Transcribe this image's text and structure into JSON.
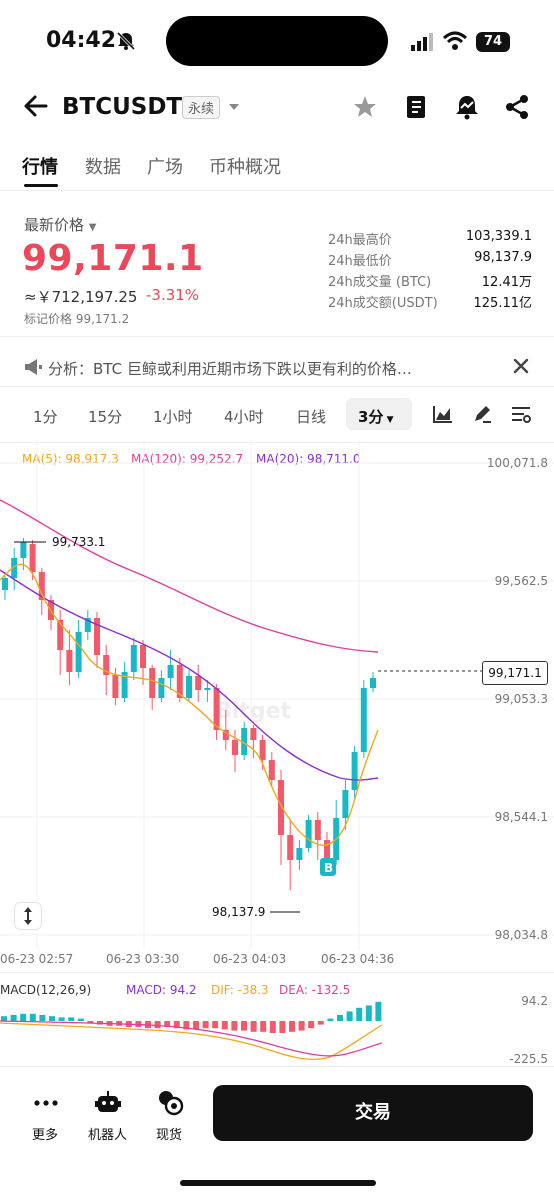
{
  "status": {
    "time": "04:42",
    "battery": "74"
  },
  "header": {
    "symbol": "BTCUSDT",
    "badge": "永续"
  },
  "tabs": [
    "行情",
    "数据",
    "广场",
    "币种概况"
  ],
  "price": {
    "label": "最新价格",
    "last": "99,171.1",
    "cny": "≈￥712,197.25",
    "change": "-3.31%",
    "mark": "标记价格 99,171.2"
  },
  "stats": [
    {
      "label": "24h最高价",
      "value": "103,339.1"
    },
    {
      "label": "24h最低价",
      "value": "98,137.9"
    },
    {
      "label": "24h成交量 (BTC)",
      "value": "12.41万"
    },
    {
      "label": "24h成交额(USDT)",
      "value": "125.11亿"
    }
  ],
  "analysis": "分析：BTC 巨鲸或利用近期市场下跌以更有利的价格…",
  "timeframes": [
    "1分",
    "15分",
    "1小时",
    "4小时",
    "日线",
    "3分"
  ],
  "ma": {
    "ma5": "MA(5): 98,917.3",
    "ma120": "MA(120): 99,252.7",
    "ma20": "MA(20): 98,711.0"
  },
  "colors": {
    "up": "#1ab8c7",
    "down": "#f05a6a",
    "ma5": "#f0a81e",
    "ma120": "#e23ca0",
    "ma20": "#8a2fd6"
  },
  "chart_data": {
    "type": "candlestick",
    "y_ticks": [
      "100,071.8",
      "99,562.5",
      "99,053.3",
      "98,544.1",
      "98,034.8"
    ],
    "x_ticks": [
      "06-23 02:57",
      "06-23 03:30",
      "06-23 04:03",
      "06-23 04:36"
    ],
    "last_price_tag": "99,171.1",
    "high_label": "99,733.1",
    "low_label": "98,137.9",
    "marker": "B",
    "watermark": "Bitget"
  },
  "macd": {
    "title": "MACD(12,26,9)",
    "macd": "MACD: 94.2",
    "dif": "DIF: -38.3",
    "dea": "DEA: -132.5",
    "y_top": "94.2",
    "y_bottom": "-225.5"
  },
  "bottom": {
    "more": "更多",
    "bot": "机器人",
    "spot": "现货",
    "trade": "交易"
  }
}
